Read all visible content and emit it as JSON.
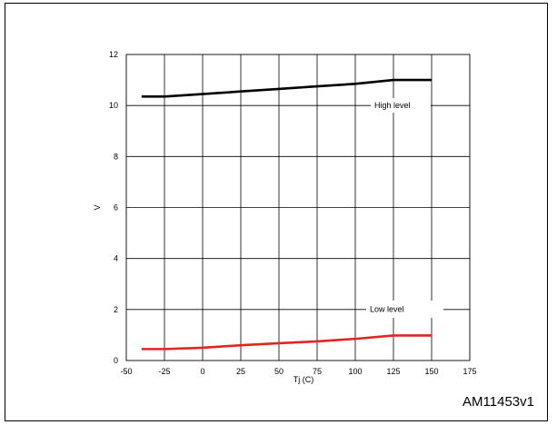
{
  "figure": {
    "code": "AM11453v1"
  },
  "chart_data": {
    "type": "line",
    "xlabel": "Tj (C)",
    "ylabel": "V",
    "xlim": [
      -50,
      175
    ],
    "ylim": [
      0,
      12
    ],
    "xticks": [
      -50,
      -25,
      0,
      25,
      50,
      75,
      100,
      125,
      150,
      175
    ],
    "yticks": [
      0,
      2,
      4,
      6,
      8,
      10,
      12
    ],
    "grid": true,
    "series": [
      {
        "name": "High level",
        "color": "#000000",
        "x": [
          -40,
          -25,
          0,
          25,
          50,
          75,
          100,
          125,
          150
        ],
        "y": [
          10.35,
          10.35,
          10.45,
          10.55,
          10.65,
          10.75,
          10.85,
          11.0,
          11.0
        ]
      },
      {
        "name": "Low level",
        "color": "#e32420",
        "x": [
          -40,
          -25,
          0,
          25,
          50,
          75,
          100,
          125,
          150
        ],
        "y": [
          0.45,
          0.45,
          0.5,
          0.6,
          0.68,
          0.75,
          0.85,
          0.98,
          0.98
        ]
      }
    ]
  }
}
